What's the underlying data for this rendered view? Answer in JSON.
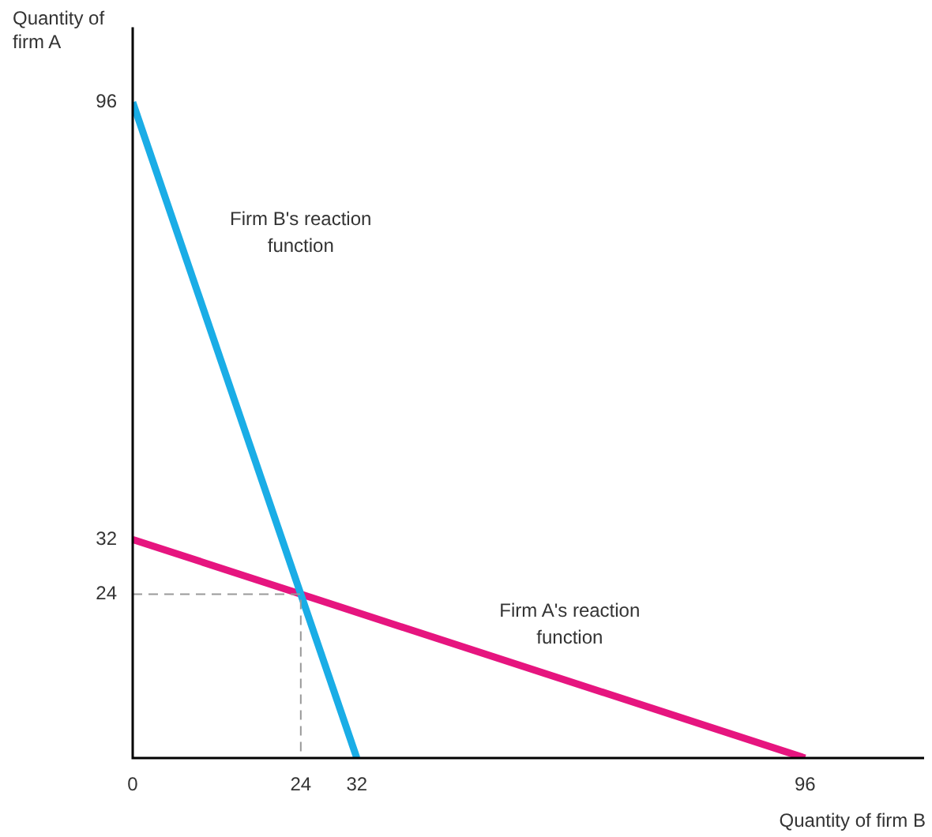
{
  "chart_data": {
    "type": "line",
    "xlabel": "Quantity of firm B",
    "ylabel": "Quantity of firm A",
    "xlim": [
      0,
      113
    ],
    "ylim": [
      0,
      107
    ],
    "xticks": [
      0,
      24,
      32,
      96
    ],
    "yticks": [
      24,
      32,
      96
    ],
    "grid": false,
    "legend": false,
    "marker": "none",
    "series": [
      {
        "name": "Firm B's reaction function",
        "x": [
          0,
          32
        ],
        "values": [
          96,
          0
        ],
        "color": "#1aade6"
      },
      {
        "name": "Firm A's reaction function",
        "x": [
          0,
          96
        ],
        "values": [
          32,
          0
        ],
        "color": "#e6157f"
      },
      {
        "x": [
          0,
          24,
          24
        ],
        "values": [
          24,
          24,
          0
        ],
        "color": "#999999",
        "line_style": "dashed"
      }
    ]
  }
}
